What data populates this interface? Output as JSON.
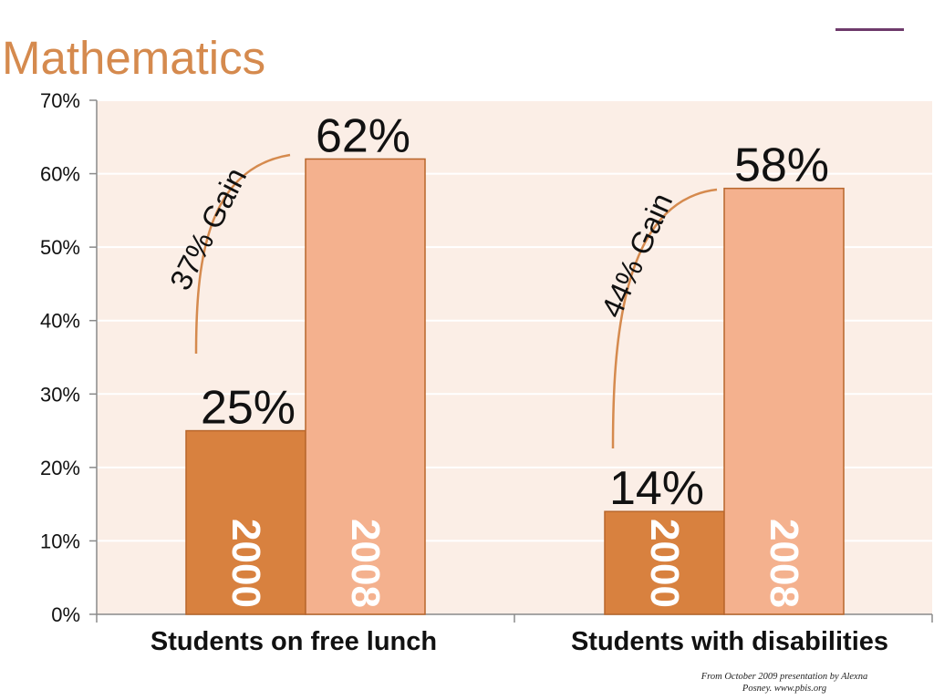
{
  "slide": {
    "title": "Mathematics",
    "credit_line1": "From October 2009 presentation by Alexna",
    "credit_line2": "Posney. www.pbis.org"
  },
  "colors": {
    "title": "#d58a4e",
    "accent_line": "#6e3a6b",
    "plot_bg": "#fbeee6",
    "bar_2000": "#d8813f",
    "bar_2008": "#f4b18e",
    "bar_border": "#b8662c",
    "gain_curve": "#d58a4e"
  },
  "chart_data": {
    "type": "bar",
    "categories": [
      "Students on free lunch",
      "Students with disabilities"
    ],
    "series": [
      {
        "name": "2000",
        "values": [
          25,
          14
        ],
        "labels": [
          "25%",
          "14%"
        ]
      },
      {
        "name": "2008",
        "values": [
          62,
          58
        ],
        "labels": [
          "62%",
          "58%"
        ]
      }
    ],
    "annotations": [
      "37% Gain",
      "44% Gain"
    ],
    "ylim": [
      0,
      70
    ],
    "yticks": [
      0,
      10,
      20,
      30,
      40,
      50,
      60,
      70
    ],
    "ytick_labels": [
      "0%",
      "10%",
      "20%",
      "30%",
      "40%",
      "50%",
      "60%",
      "70%"
    ],
    "grid": true,
    "legend": "none (series years printed inside bars)"
  }
}
